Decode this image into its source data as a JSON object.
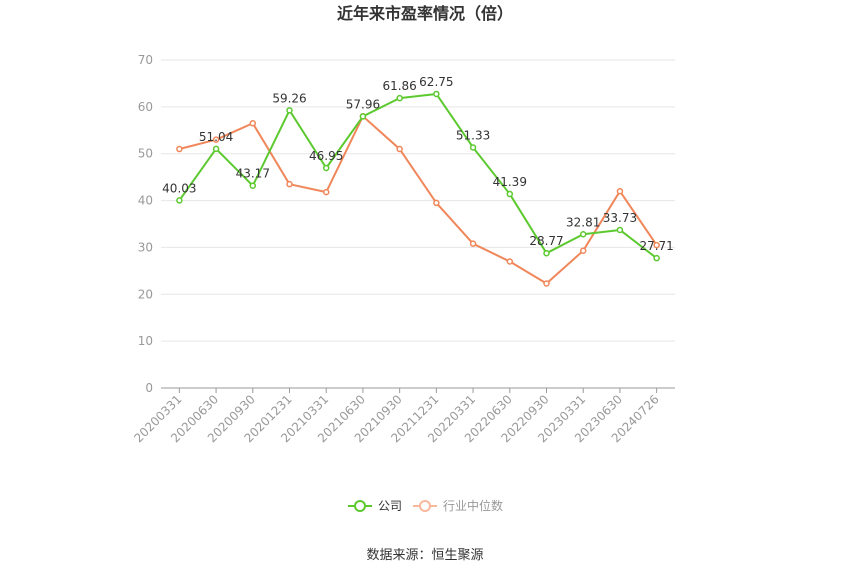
{
  "chart_data": {
    "type": "line",
    "title": "近年来市盈率情况（倍）",
    "categories": [
      "20200331",
      "20200630",
      "20200930",
      "20201231",
      "20210331",
      "20210630",
      "20210930",
      "20211231",
      "20220331",
      "20220630",
      "20220930",
      "20230331",
      "20230630",
      "20240726"
    ],
    "ylim": [
      0,
      70
    ],
    "yticks": [
      0,
      10,
      20,
      30,
      40,
      50,
      60,
      70
    ],
    "grid": true,
    "legend_position": "bottom",
    "series": [
      {
        "name": "公司",
        "color": "#5cc92f",
        "values": [
          40.03,
          51.04,
          43.17,
          59.26,
          46.95,
          57.96,
          61.86,
          62.75,
          51.33,
          41.39,
          28.77,
          32.81,
          33.73,
          27.71
        ],
        "labels": [
          "40.03",
          "51.04",
          "43.17",
          "59.26",
          "46.95",
          "57.96",
          "61.86",
          "62.75",
          "51.33",
          "41.39",
          "28.77",
          "32.81",
          "33.73",
          "27.71"
        ]
      },
      {
        "name": "行业中位数",
        "color": "#f0875a",
        "values": [
          51.0,
          53.0,
          56.5,
          43.5,
          41.8,
          58.0,
          51.0,
          39.5,
          30.8,
          27.0,
          22.3,
          29.3,
          42.0,
          30.5
        ]
      }
    ]
  },
  "footer": {
    "source": "数据来源：恒生聚源"
  }
}
